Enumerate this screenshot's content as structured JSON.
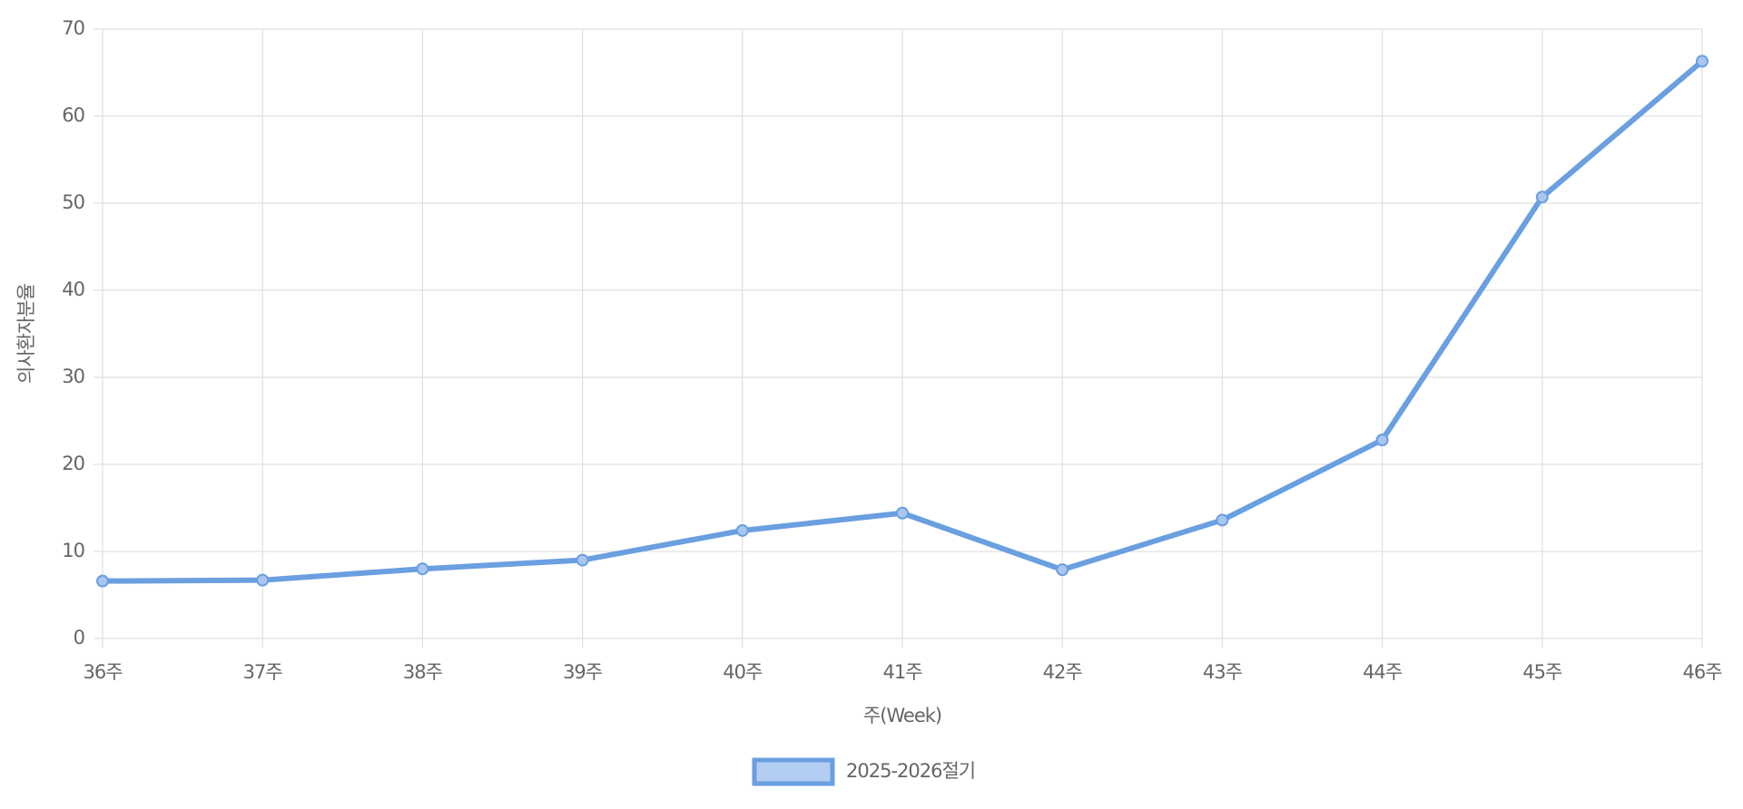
{
  "chart_data": {
    "type": "line",
    "x_label": "주(Week)",
    "y_label": "의사환자분율",
    "categories": [
      "36주",
      "37주",
      "38주",
      "39주",
      "40주",
      "41주",
      "42주",
      "43주",
      "44주",
      "45주",
      "46주"
    ],
    "series": [
      {
        "name": "2025-2026절기",
        "color": "#6a9fe0",
        "values": [
          6.6,
          6.7,
          8.0,
          9.0,
          12.4,
          14.4,
          7.9,
          13.6,
          22.8,
          50.7,
          66.3
        ]
      }
    ],
    "ylim": [
      0,
      70
    ],
    "yticks": [
      0,
      10,
      20,
      30,
      40,
      50,
      60,
      70
    ],
    "grid": true
  }
}
